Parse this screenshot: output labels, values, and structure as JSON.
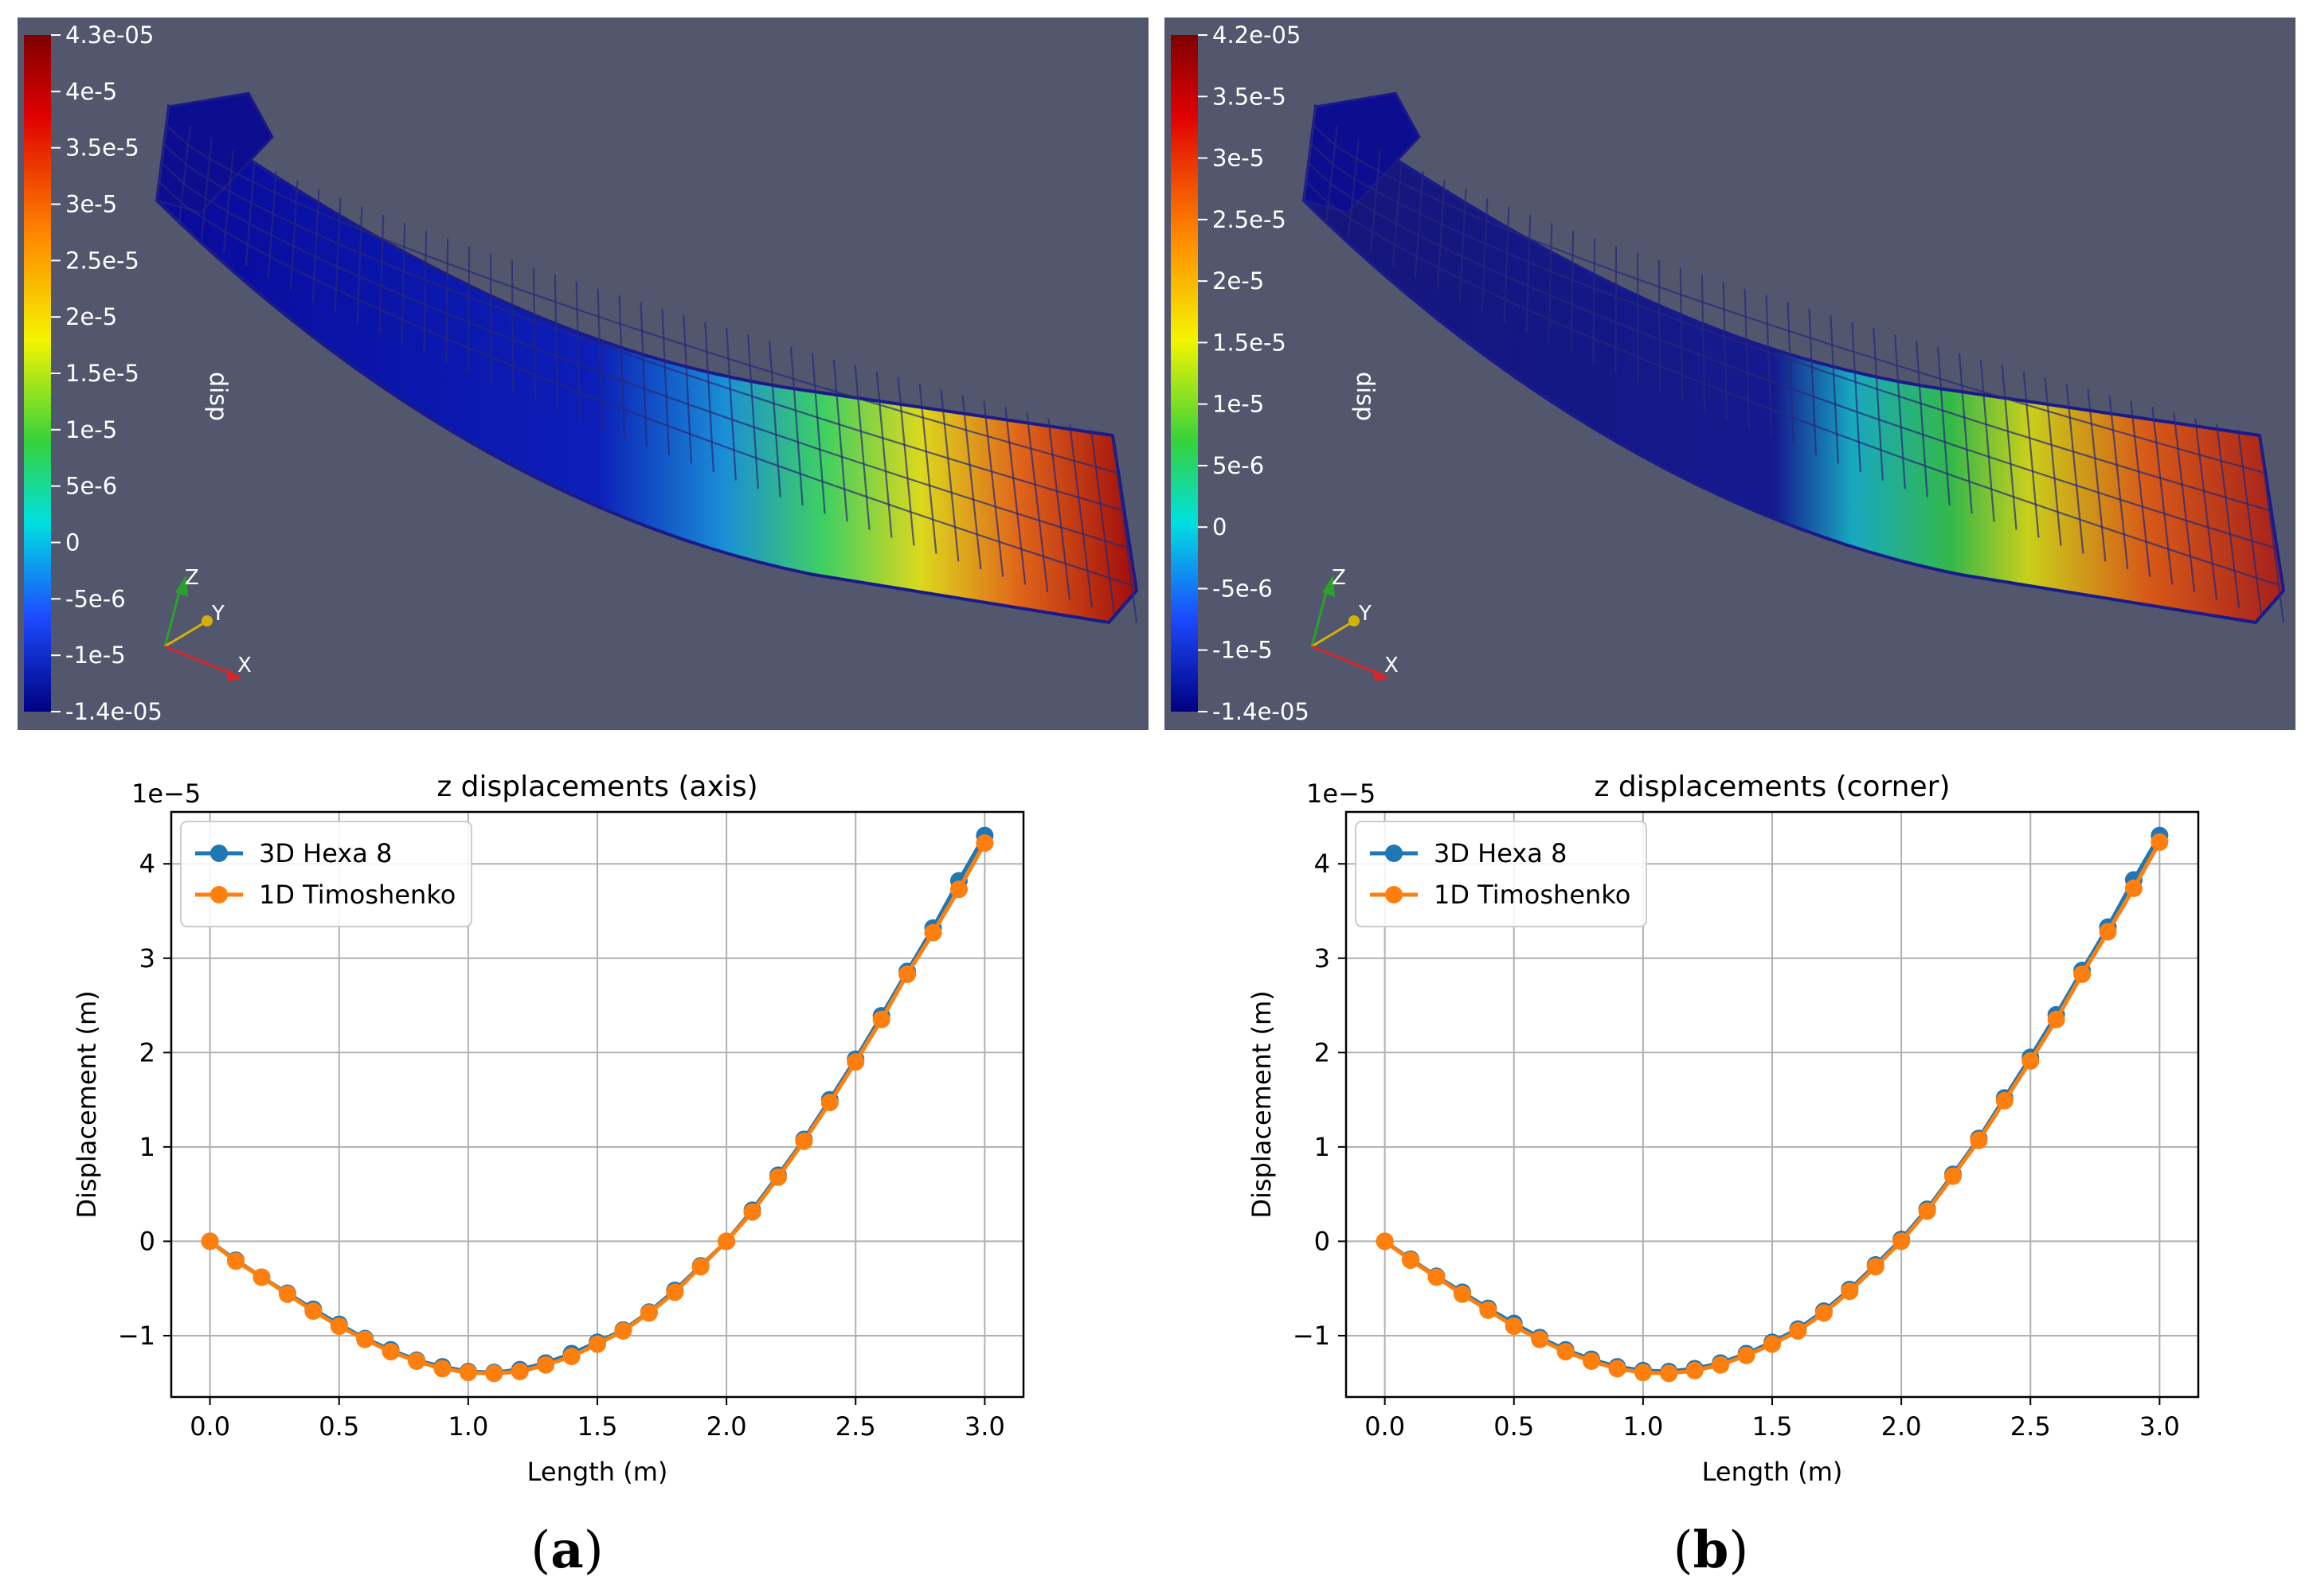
{
  "colors": {
    "viewport_bg": "#52576e",
    "series_hexa": "#1f77b4",
    "series_timo": "#ff7f0e",
    "grid": "#b0b0b0",
    "axis_x": "#d62728",
    "axis_y": "#d4b106",
    "axis_z": "#2ca02c"
  },
  "panels": [
    {
      "id": "a",
      "render": {
        "legend_title": "disp",
        "colorbar_top": "4.3e-05",
        "colorbar_bottom": "-1.4e-05",
        "colorbar_ticks": [
          "4e-5",
          "3.5e-5",
          "3e-5",
          "2.5e-5",
          "2e-5",
          "1.5e-5",
          "1e-5",
          "5e-6",
          "0",
          "-5e-6",
          "-1e-5"
        ],
        "axes_labels": {
          "x": "X",
          "y": "Y",
          "z": "Z"
        }
      },
      "sublabel": "a"
    },
    {
      "id": "b",
      "render": {
        "legend_title": "disp",
        "colorbar_top": "4.2e-05",
        "colorbar_bottom": "-1.4e-05",
        "colorbar_ticks": [
          "3.5e-5",
          "3e-5",
          "2.5e-5",
          "2e-5",
          "1.5e-5",
          "1e-5",
          "5e-6",
          "0",
          "-5e-6",
          "-1e-5"
        ],
        "axes_labels": {
          "x": "X",
          "y": "Y",
          "z": "Z"
        }
      },
      "sublabel": "b"
    }
  ],
  "chart_data": [
    {
      "type": "line",
      "title": "z displacements (axis)",
      "xlabel": "Length (m)",
      "ylabel": "Displacement (m)",
      "offset_label": "1e−5",
      "xlim": [
        -0.15,
        3.15
      ],
      "ylim": [
        -1.65,
        4.55
      ],
      "xticks": [
        0.0,
        0.5,
        1.0,
        1.5,
        2.0,
        2.5,
        3.0
      ],
      "xtick_labels": [
        "0.0",
        "0.5",
        "1.0",
        "1.5",
        "2.0",
        "2.5",
        "3.0"
      ],
      "yticks": [
        -1,
        0,
        1,
        2,
        3,
        4
      ],
      "ytick_labels": [
        "−1",
        "0",
        "1",
        "2",
        "3",
        "4"
      ],
      "grid": true,
      "legend_position": "top-left",
      "x": [
        0.0,
        0.1,
        0.2,
        0.3,
        0.4,
        0.5,
        0.6,
        0.7,
        0.8,
        0.9,
        1.0,
        1.1,
        1.2,
        1.3,
        1.4,
        1.5,
        1.6,
        1.7,
        1.8,
        1.9,
        2.0,
        2.1,
        2.2,
        2.3,
        2.4,
        2.5,
        2.6,
        2.7,
        2.8,
        2.9,
        3.0
      ],
      "series": [
        {
          "name": "3D Hexa 8",
          "values": [
            0.0,
            -0.2,
            -0.38,
            -0.55,
            -0.72,
            -0.88,
            -1.03,
            -1.15,
            -1.26,
            -1.33,
            -1.38,
            -1.39,
            -1.36,
            -1.29,
            -1.19,
            -1.07,
            -0.94,
            -0.75,
            -0.52,
            -0.26,
            0.0,
            0.33,
            0.7,
            1.08,
            1.5,
            1.93,
            2.39,
            2.86,
            3.32,
            3.82,
            4.3
          ]
        },
        {
          "name": "1D Timoshenko",
          "values": [
            0.0,
            -0.21,
            -0.38,
            -0.56,
            -0.74,
            -0.9,
            -1.04,
            -1.17,
            -1.27,
            -1.35,
            -1.39,
            -1.4,
            -1.38,
            -1.31,
            -1.22,
            -1.09,
            -0.95,
            -0.76,
            -0.54,
            -0.27,
            0.0,
            0.31,
            0.68,
            1.06,
            1.47,
            1.9,
            2.35,
            2.83,
            3.27,
            3.73,
            4.22
          ]
        }
      ]
    },
    {
      "type": "line",
      "title": "z displacements (corner)",
      "xlabel": "Length (m)",
      "ylabel": "Displacement (m)",
      "offset_label": "1e−5",
      "xlim": [
        -0.15,
        3.15
      ],
      "ylim": [
        -1.65,
        4.55
      ],
      "xticks": [
        0.0,
        0.5,
        1.0,
        1.5,
        2.0,
        2.5,
        3.0
      ],
      "xtick_labels": [
        "0.0",
        "0.5",
        "1.0",
        "1.5",
        "2.0",
        "2.5",
        "3.0"
      ],
      "yticks": [
        -1,
        0,
        1,
        2,
        3,
        4
      ],
      "ytick_labels": [
        "−1",
        "0",
        "1",
        "2",
        "3",
        "4"
      ],
      "grid": true,
      "legend_position": "top-left",
      "x": [
        0.0,
        0.1,
        0.2,
        0.3,
        0.4,
        0.5,
        0.6,
        0.7,
        0.8,
        0.9,
        1.0,
        1.1,
        1.2,
        1.3,
        1.4,
        1.5,
        1.6,
        1.7,
        1.8,
        1.9,
        2.0,
        2.1,
        2.2,
        2.3,
        2.4,
        2.5,
        2.6,
        2.7,
        2.8,
        2.9,
        3.0
      ],
      "series": [
        {
          "name": "3D Hexa 8",
          "values": [
            0.0,
            -0.19,
            -0.37,
            -0.54,
            -0.71,
            -0.87,
            -1.02,
            -1.15,
            -1.25,
            -1.33,
            -1.37,
            -1.38,
            -1.35,
            -1.29,
            -1.19,
            -1.07,
            -0.93,
            -0.74,
            -0.51,
            -0.25,
            0.02,
            0.34,
            0.71,
            1.09,
            1.52,
            1.95,
            2.4,
            2.87,
            3.33,
            3.83,
            4.3
          ]
        },
        {
          "name": "1D Timoshenko",
          "values": [
            0.0,
            -0.2,
            -0.38,
            -0.56,
            -0.73,
            -0.9,
            -1.04,
            -1.17,
            -1.27,
            -1.35,
            -1.39,
            -1.4,
            -1.37,
            -1.31,
            -1.21,
            -1.09,
            -0.95,
            -0.76,
            -0.53,
            -0.27,
            0.0,
            0.32,
            0.69,
            1.07,
            1.49,
            1.91,
            2.35,
            2.83,
            3.28,
            3.74,
            4.23
          ]
        }
      ]
    }
  ]
}
